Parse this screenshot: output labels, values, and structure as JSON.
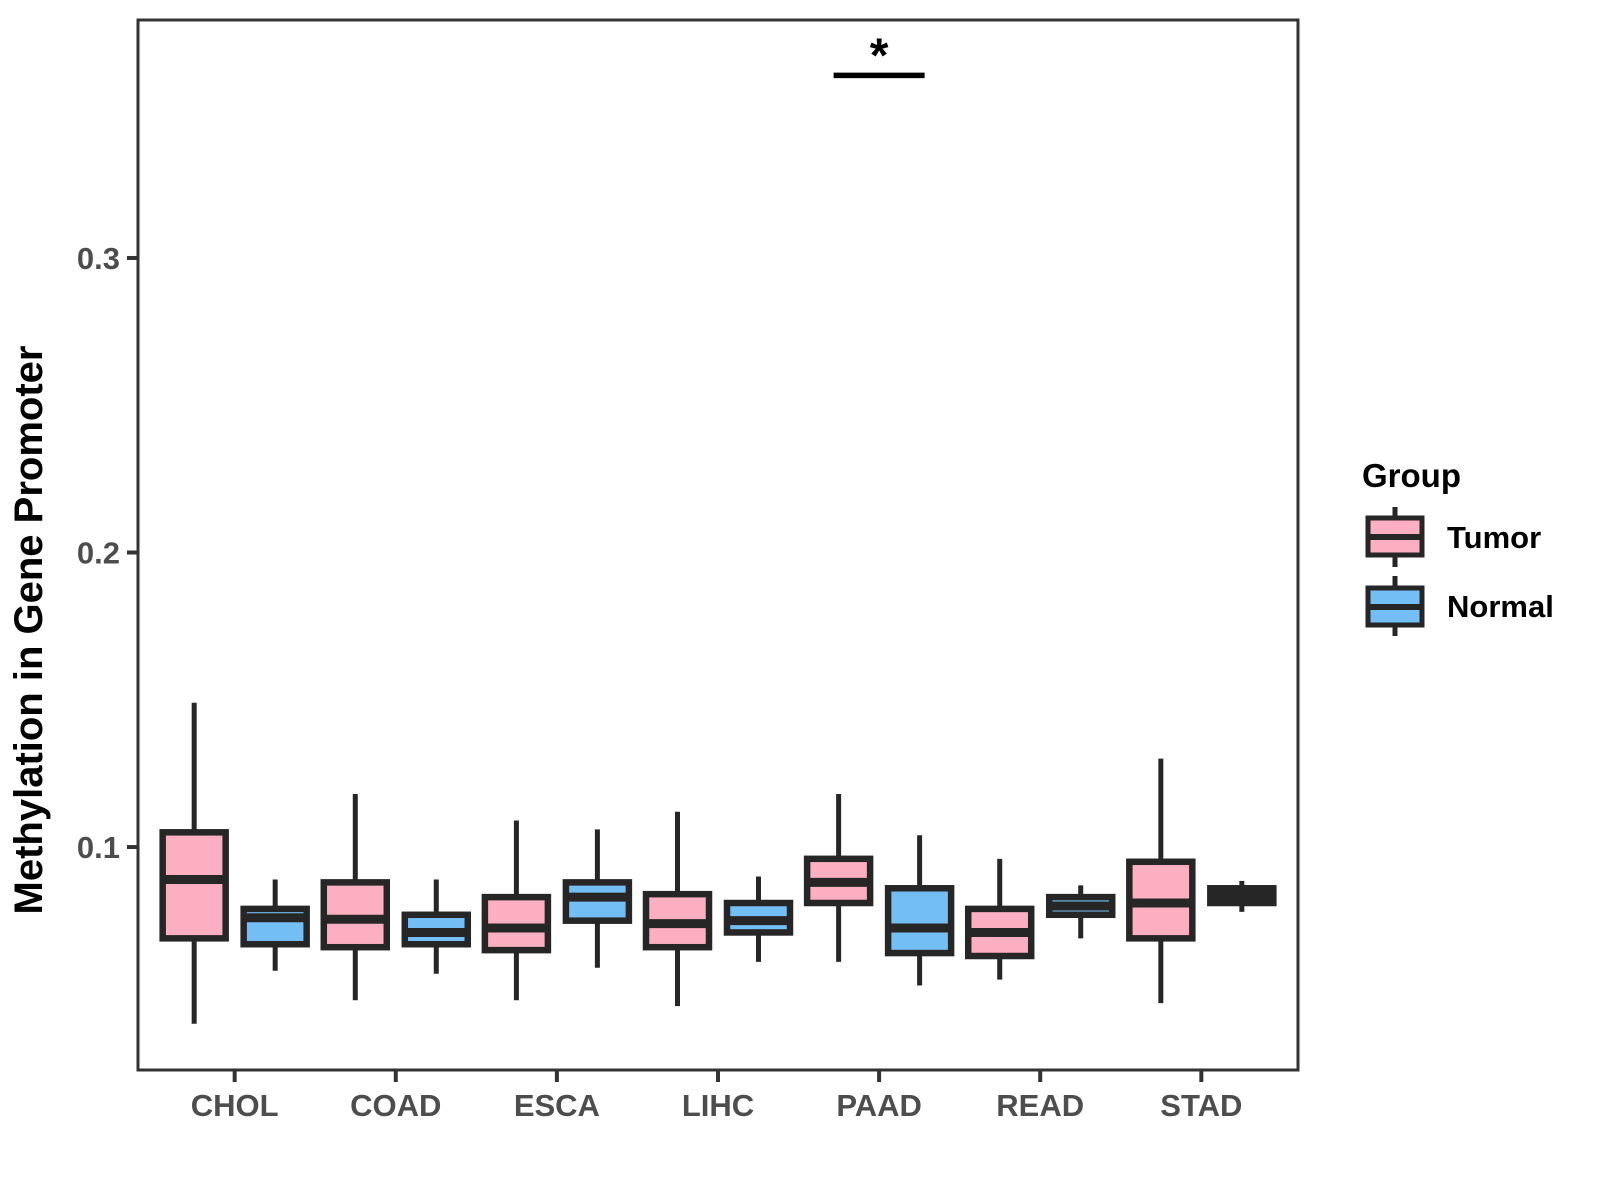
{
  "figure": {
    "y_axis_title": "Methylation in Gene Promoter",
    "legend": {
      "title": "Group",
      "items": [
        {
          "label": "Tumor",
          "color": "#FBAFC0"
        },
        {
          "label": "Normal",
          "color": "#73BFF5"
        }
      ]
    }
  },
  "colors": {
    "tumor_fill": "#FBAFC0",
    "normal_fill": "#73BFF5",
    "box_stroke": "#262626",
    "panel_border": "#333333",
    "tick_text": "#4D4D4D",
    "title_text": "#000000",
    "annotation": "#000000"
  },
  "chart_data": {
    "type": "boxplot",
    "title": "",
    "xlabel": "",
    "ylabel": "Methylation in Gene Promoter",
    "categories": [
      "CHOL",
      "COAD",
      "ESCA",
      "LIHC",
      "PAAD",
      "READ",
      "STAD"
    ],
    "y_ticks": [
      0.1,
      0.2,
      0.3
    ],
    "y_tick_labels": [
      "0.1",
      "0.2",
      "0.3"
    ],
    "ylim": [
      0.0243,
      0.3808
    ],
    "grid": false,
    "legend_position": "right",
    "series": [
      {
        "name": "Tumor",
        "color": "#FBAFC0",
        "boxes": [
          {
            "category": "CHOL",
            "min": 0.04,
            "q1": 0.069,
            "median": 0.089,
            "q3": 0.105,
            "max": 0.149
          },
          {
            "category": "COAD",
            "min": 0.048,
            "q1": 0.066,
            "median": 0.0755,
            "q3": 0.088,
            "max": 0.118
          },
          {
            "category": "ESCA",
            "min": 0.048,
            "q1": 0.065,
            "median": 0.0725,
            "q3": 0.083,
            "max": 0.109
          },
          {
            "category": "LIHC",
            "min": 0.046,
            "q1": 0.066,
            "median": 0.074,
            "q3": 0.084,
            "max": 0.112
          },
          {
            "category": "PAAD",
            "min": 0.061,
            "q1": 0.081,
            "median": 0.088,
            "q3": 0.096,
            "max": 0.118
          },
          {
            "category": "READ",
            "min": 0.055,
            "q1": 0.063,
            "median": 0.071,
            "q3": 0.079,
            "max": 0.096
          },
          {
            "category": "STAD",
            "min": 0.047,
            "q1": 0.069,
            "median": 0.081,
            "q3": 0.095,
            "max": 0.13
          }
        ]
      },
      {
        "name": "Normal",
        "color": "#73BFF5",
        "boxes": [
          {
            "category": "CHOL",
            "min": 0.058,
            "q1": 0.067,
            "median": 0.076,
            "q3": 0.079,
            "max": 0.089
          },
          {
            "category": "COAD",
            "min": 0.057,
            "q1": 0.067,
            "median": 0.071,
            "q3": 0.077,
            "max": 0.089
          },
          {
            "category": "ESCA",
            "min": 0.059,
            "q1": 0.075,
            "median": 0.083,
            "q3": 0.088,
            "max": 0.106
          },
          {
            "category": "LIHC",
            "min": 0.061,
            "q1": 0.071,
            "median": 0.075,
            "q3": 0.081,
            "max": 0.09
          },
          {
            "category": "PAAD",
            "min": 0.053,
            "q1": 0.064,
            "median": 0.0725,
            "q3": 0.086,
            "max": 0.104
          },
          {
            "category": "READ",
            "min": 0.069,
            "q1": 0.077,
            "median": 0.08,
            "q3": 0.083,
            "max": 0.087
          },
          {
            "category": "STAD",
            "min": 0.078,
            "q1": 0.081,
            "median": 0.0835,
            "q3": 0.086,
            "max": 0.0885
          }
        ]
      }
    ],
    "significance": [
      {
        "category": "PAAD",
        "between": [
          "Tumor",
          "Normal"
        ],
        "label": "*",
        "bar_y": 0.362
      }
    ]
  }
}
